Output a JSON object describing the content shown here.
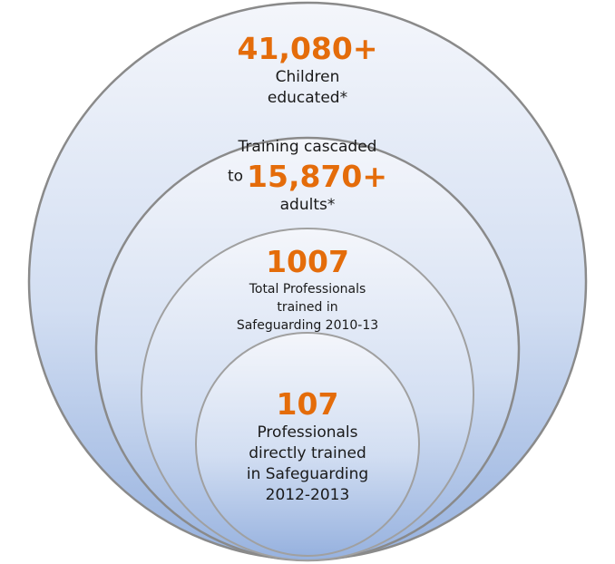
{
  "colors": {
    "number_accent": "#e46c0a",
    "circle_fill_top": "#f4f6fb",
    "circle_fill_bottom": "#97b2df",
    "circle_stroke": "#8a8a8a",
    "text": "#1a1a1a"
  },
  "circles": [
    {
      "number": "41,080+",
      "text_lines": [
        "Children",
        "educated*"
      ]
    },
    {
      "prefix": "to",
      "number": "15,870+",
      "text_before": "Training cascaded",
      "text_after": "adults*"
    },
    {
      "number": "1007",
      "text_lines": [
        "Total Professionals",
        "trained in",
        "Safeguarding 2010-13"
      ]
    },
    {
      "number": "107",
      "text_lines": [
        "Professionals",
        "directly trained",
        "in Safeguarding",
        "2012-2013"
      ]
    }
  ]
}
